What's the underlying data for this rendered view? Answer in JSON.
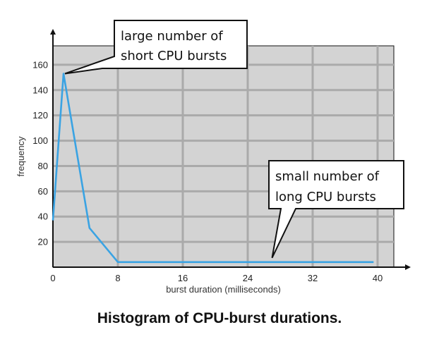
{
  "chart_data": {
    "type": "line",
    "title": "",
    "caption": "Histogram of CPU-burst durations.",
    "xlabel": "burst duration (milliseconds)",
    "ylabel": "frequency",
    "xlim": [
      0,
      42
    ],
    "ylim": [
      0,
      175
    ],
    "x_ticks": [
      0,
      8,
      16,
      24,
      32,
      40
    ],
    "y_ticks": [
      20,
      40,
      60,
      80,
      100,
      120,
      140,
      160
    ],
    "grid": true,
    "series": [
      {
        "color": "#3aa3e3",
        "points": [
          {
            "x": 0,
            "y": 37
          },
          {
            "x": 1.3,
            "y": 153
          },
          {
            "x": 4.5,
            "y": 31
          },
          {
            "x": 8,
            "y": 4
          },
          {
            "x": 39.5,
            "y": 4
          }
        ]
      }
    ],
    "annotations": [
      {
        "lines": [
          "large number of",
          "short CPU bursts"
        ],
        "points_to": {
          "x": 1.3,
          "y": 153
        }
      },
      {
        "lines": [
          "small number of",
          "long CPU bursts"
        ],
        "points_to": {
          "x": 27,
          "y": 4
        }
      }
    ],
    "colors": {
      "plot_background": "#d3d3d3",
      "grid": "#aaaaaa",
      "line": "#3aa3e3",
      "axes": "#111111"
    }
  }
}
